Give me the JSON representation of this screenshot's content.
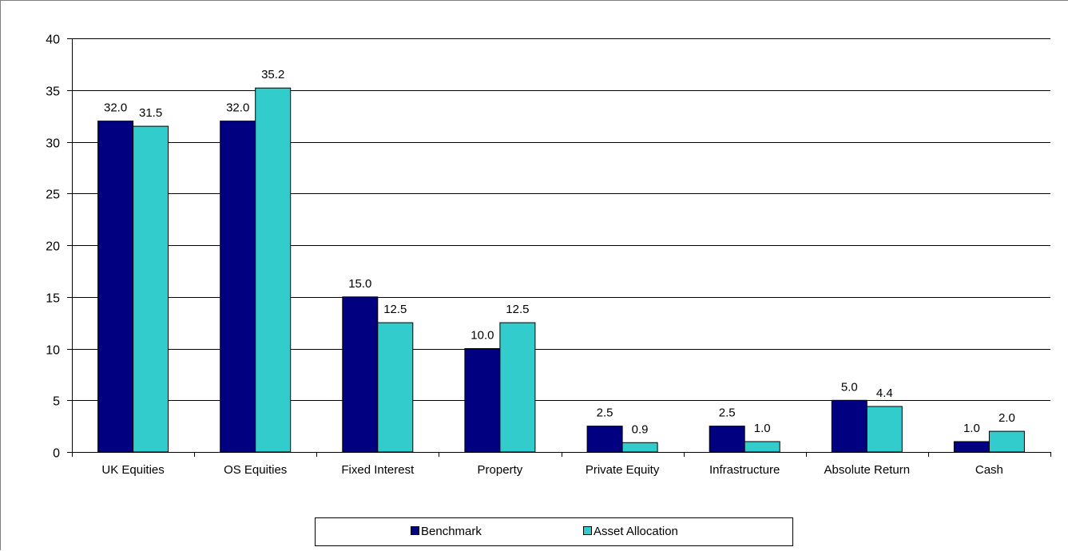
{
  "chart_data": {
    "type": "bar",
    "title": "",
    "xlabel": "",
    "ylabel": "",
    "ylim": [
      0,
      40
    ],
    "yticks": [
      0,
      5,
      10,
      15,
      20,
      25,
      30,
      35,
      40
    ],
    "grid": true,
    "legend_position": "bottom",
    "categories": [
      "UK Equities",
      "OS Equities",
      "Fixed Interest",
      "Property",
      "Private Equity",
      "Infrastructure",
      "Absolute Return",
      "Cash"
    ],
    "series": [
      {
        "name": "Benchmark",
        "color": "#000080",
        "values": [
          32.0,
          32.0,
          15.0,
          10.0,
          2.5,
          2.5,
          5.0,
          1.0
        ],
        "labels": [
          "32.0",
          "32.0",
          "15.0",
          "10.0",
          "2.5",
          "2.5",
          "5.0",
          "1.0"
        ]
      },
      {
        "name": "Asset Allocation",
        "color": "#33CCCC",
        "values": [
          31.5,
          35.2,
          12.5,
          12.5,
          0.9,
          1.0,
          4.4,
          2.0
        ],
        "labels": [
          "31.5",
          "35.2",
          "12.5",
          "12.5",
          "0.9",
          "1.0",
          "4.4",
          "2.0"
        ]
      }
    ]
  }
}
